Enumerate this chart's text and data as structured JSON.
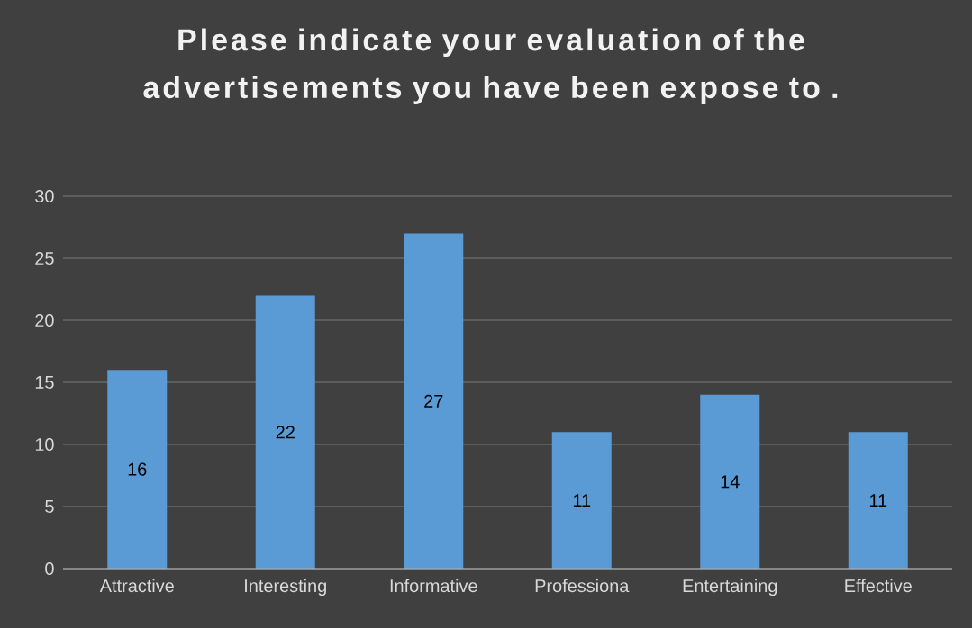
{
  "chart_data": {
    "type": "bar",
    "title": "Please indicate your evaluation of the advertisements you have been expose to .",
    "categories": [
      "Attractive",
      "Interesting",
      "Informative",
      "Professiona",
      "Entertaining",
      "Effective"
    ],
    "values": [
      16,
      22,
      27,
      11,
      14,
      11
    ],
    "color": "#5b9bd5",
    "ylim": [
      0,
      30
    ],
    "yticks": [
      0,
      5,
      10,
      15,
      20,
      25,
      30
    ],
    "grid": "y",
    "data_labels": true
  }
}
